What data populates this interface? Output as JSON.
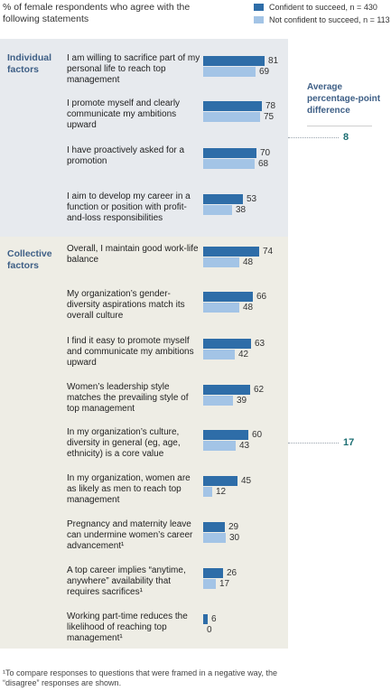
{
  "header": "% of female respondents who agree with the following statements",
  "legend": [
    {
      "label": "Confident to succeed, n = 430",
      "color": "#2e6da8"
    },
    {
      "label": "Not confident to succeed, n = 113",
      "color": "#a3c4e6"
    }
  ],
  "sections": {
    "individual": "Individual factors",
    "collective": "Collective factors"
  },
  "average": {
    "title": "Average percentage-point difference",
    "individual": "8",
    "collective": "17"
  },
  "footnote": "¹To compare responses to questions that were framed in a negative way, the “disagree” responses are shown.",
  "chart_data": {
    "type": "bar",
    "orientation": "horizontal",
    "categories": [
      "I am willing to sacrifice part of my personal life to reach top management",
      "I promote myself and clearly communicate my ambitions upward",
      "I have proactively asked for a promotion",
      "I aim to develop my career in a function or position with profit-and-loss responsibilities",
      "Overall, I maintain good work-life balance",
      "My organization’s gender-diversity aspirations match its overall culture",
      "I find it easy to promote myself and communicate my ambitions upward",
      "Women’s leadership style matches the prevailing style of top management",
      "In my organization’s culture, diversity in general (eg, age, ethnicity) is a core value",
      "In my organization, women are as likely as men to reach top management",
      "Pregnancy and maternity leave can undermine women’s career advancement¹",
      "A top career implies “anytime, anywhere” availability that requires sacrifices¹",
      "Working part-time reduces the likelihood of reaching top management¹"
    ],
    "groups": [
      "Individual factors",
      "Individual factors",
      "Individual factors",
      "Individual factors",
      "Collective factors",
      "Collective factors",
      "Collective factors",
      "Collective factors",
      "Collective factors",
      "Collective factors",
      "Collective factors",
      "Collective factors",
      "Collective factors"
    ],
    "series": [
      {
        "name": "Confident to succeed, n = 430",
        "values": [
          81,
          78,
          70,
          53,
          74,
          66,
          63,
          62,
          60,
          45,
          29,
          26,
          6
        ]
      },
      {
        "name": "Not confident to succeed, n = 113",
        "values": [
          69,
          75,
          68,
          38,
          48,
          48,
          42,
          39,
          43,
          12,
          30,
          17,
          0
        ]
      }
    ],
    "xlim": [
      0,
      100
    ]
  }
}
